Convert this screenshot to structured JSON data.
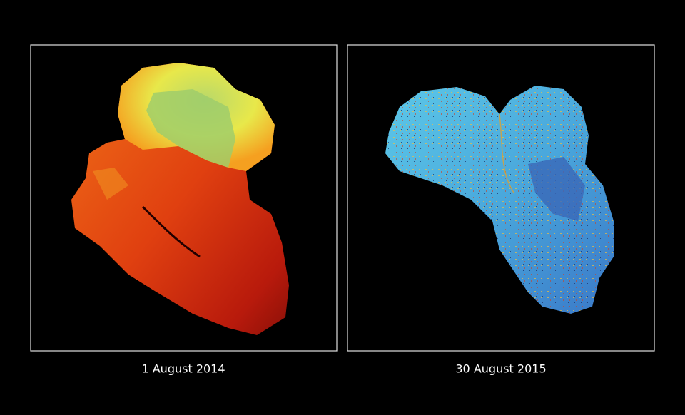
{
  "panels": [
    {
      "caption": "1 August 2014"
    },
    {
      "caption": "30 August 2015"
    }
  ]
}
